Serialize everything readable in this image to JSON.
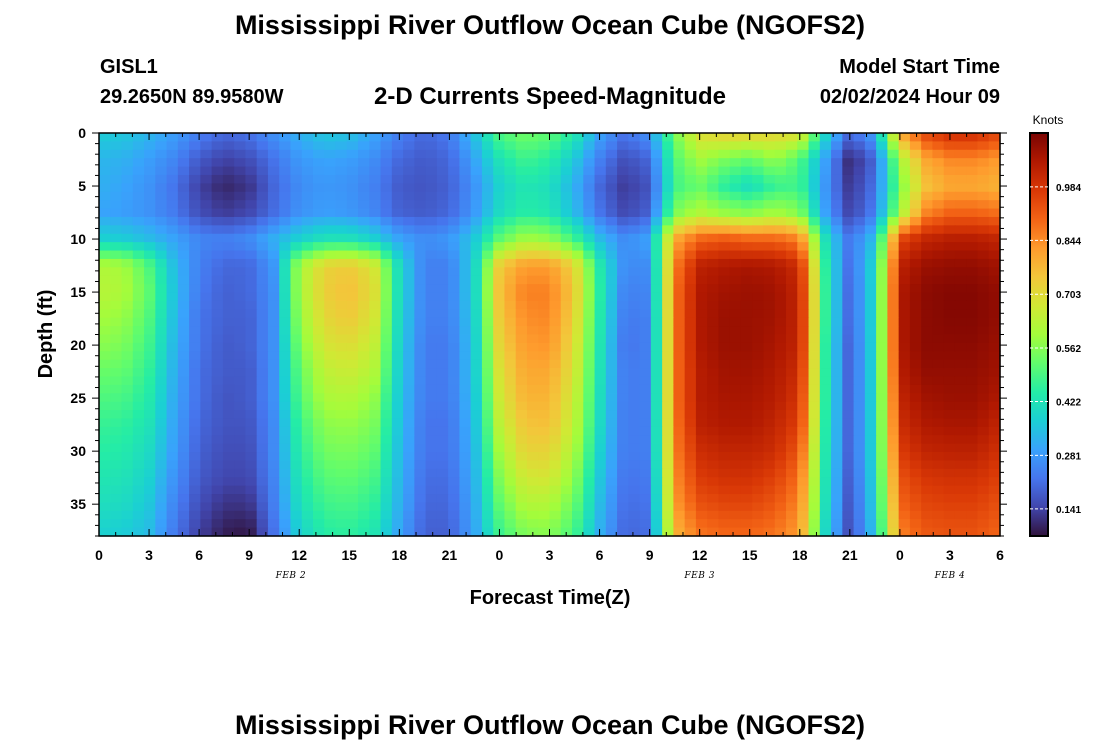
{
  "header": {
    "title": "Mississippi River Outflow Ocean Cube (NGOFS2)",
    "station": "GISL1",
    "coords": "29.2650N  89.9580W",
    "subtitle": "2-D Currents Speed-Magnitude",
    "model_start_label": "Model Start Time",
    "model_start_value": "02/02/2024 Hour 09"
  },
  "footer": {
    "title": "Mississippi River Outflow Ocean Cube (NGOFS2)"
  },
  "chart_data": {
    "type": "heatmap",
    "xlabel": "Forecast Time(Z)",
    "ylabel": "Depth (ft)",
    "x_range_hours": [
      0,
      54
    ],
    "y_range_ft": [
      0,
      38
    ],
    "y_inverted": true,
    "x_ticks": [
      {
        "hour": 0,
        "label": "0"
      },
      {
        "hour": 3,
        "label": "3"
      },
      {
        "hour": 6,
        "label": "6"
      },
      {
        "hour": 9,
        "label": "9"
      },
      {
        "hour": 12,
        "label": "12"
      },
      {
        "hour": 15,
        "label": "15"
      },
      {
        "hour": 18,
        "label": "18"
      },
      {
        "hour": 21,
        "label": "21"
      },
      {
        "hour": 24,
        "label": "0"
      },
      {
        "hour": 27,
        "label": "3"
      },
      {
        "hour": 30,
        "label": "6"
      },
      {
        "hour": 33,
        "label": "9"
      },
      {
        "hour": 36,
        "label": "12"
      },
      {
        "hour": 39,
        "label": "15"
      },
      {
        "hour": 42,
        "label": "18"
      },
      {
        "hour": 45,
        "label": "21"
      },
      {
        "hour": 48,
        "label": "0"
      },
      {
        "hour": 51,
        "label": "3"
      },
      {
        "hour": 54,
        "label": "6"
      }
    ],
    "date_labels": [
      {
        "hour": 11.5,
        "label": "FEB 2"
      },
      {
        "hour": 36,
        "label": "FEB 3"
      },
      {
        "hour": 51,
        "label": "FEB 4"
      }
    ],
    "y_ticks": [
      0,
      5,
      10,
      15,
      20,
      25,
      30,
      35
    ],
    "colorbar": {
      "unit": "Knots",
      "min": 0.07,
      "max": 1.125,
      "ticks": [
        0.141,
        0.281,
        0.422,
        0.562,
        0.703,
        0.844,
        0.984
      ],
      "tick_labels": [
        "0.141",
        "0.281",
        "0.422",
        "0.562",
        "0.703",
        "0.844",
        "0.984"
      ],
      "colormap": [
        "#30123b",
        "#4145ab",
        "#4675ed",
        "#39a2fc",
        "#1bcfd4",
        "#24eca6",
        "#61fc6c",
        "#a4fc3b",
        "#d1e834",
        "#f3c63a",
        "#fe9b2d",
        "#f36315",
        "#d93806",
        "#b11901",
        "#7a0402"
      ]
    },
    "data_columns_hour": [
      0,
      1.5,
      3,
      4.5,
      6,
      7.5,
      9,
      10.5,
      12,
      13.5,
      15,
      16.5,
      18,
      19.5,
      21,
      22.5,
      24,
      25.5,
      27,
      28.5,
      30,
      31.5,
      33,
      34.5,
      36,
      37.5,
      39,
      40.5,
      42,
      43.5,
      45,
      46.5,
      48,
      49.5,
      51,
      52.5,
      54
    ],
    "data_rows_depth_ft": [
      0,
      2.5,
      5,
      7.5,
      10,
      12.5,
      15,
      17.5,
      20,
      22.5,
      25,
      27.5,
      30,
      32.5,
      35,
      37.5
    ],
    "speed_knots": [
      [
        0.37,
        0.36,
        0.33,
        0.29,
        0.24,
        0.2,
        0.22,
        0.27,
        0.32,
        0.36,
        0.35,
        0.3,
        0.24,
        0.2,
        0.23,
        0.35,
        0.5,
        0.54,
        0.52,
        0.44,
        0.3,
        0.22,
        0.27,
        0.55,
        0.7,
        0.73,
        0.73,
        0.72,
        0.7,
        0.4,
        0.2,
        0.3,
        0.8,
        0.95,
        1.0,
        1.0,
        0.95
      ],
      [
        0.33,
        0.32,
        0.29,
        0.25,
        0.18,
        0.14,
        0.16,
        0.22,
        0.28,
        0.3,
        0.29,
        0.26,
        0.2,
        0.18,
        0.2,
        0.3,
        0.42,
        0.48,
        0.45,
        0.36,
        0.24,
        0.16,
        0.2,
        0.5,
        0.6,
        0.55,
        0.52,
        0.58,
        0.5,
        0.3,
        0.1,
        0.2,
        0.6,
        0.8,
        0.85,
        0.85,
        0.82
      ],
      [
        0.32,
        0.3,
        0.27,
        0.22,
        0.14,
        0.1,
        0.12,
        0.2,
        0.26,
        0.28,
        0.27,
        0.24,
        0.18,
        0.17,
        0.19,
        0.27,
        0.38,
        0.43,
        0.41,
        0.32,
        0.2,
        0.13,
        0.17,
        0.48,
        0.53,
        0.45,
        0.4,
        0.47,
        0.48,
        0.28,
        0.12,
        0.22,
        0.55,
        0.75,
        0.8,
        0.8,
        0.78
      ],
      [
        0.3,
        0.29,
        0.27,
        0.23,
        0.16,
        0.13,
        0.15,
        0.21,
        0.27,
        0.29,
        0.28,
        0.25,
        0.19,
        0.18,
        0.2,
        0.28,
        0.4,
        0.45,
        0.43,
        0.34,
        0.22,
        0.15,
        0.19,
        0.55,
        0.62,
        0.58,
        0.56,
        0.6,
        0.56,
        0.3,
        0.14,
        0.24,
        0.6,
        0.85,
        0.9,
        0.9,
        0.88
      ],
      [
        0.38,
        0.37,
        0.34,
        0.3,
        0.25,
        0.24,
        0.26,
        0.32,
        0.38,
        0.42,
        0.42,
        0.38,
        0.3,
        0.26,
        0.28,
        0.36,
        0.52,
        0.6,
        0.58,
        0.48,
        0.34,
        0.26,
        0.3,
        0.8,
        0.9,
        0.92,
        0.9,
        0.9,
        0.86,
        0.42,
        0.22,
        0.35,
        0.95,
        1.02,
        1.04,
        1.04,
        1.02
      ],
      [
        0.62,
        0.6,
        0.5,
        0.34,
        0.24,
        0.2,
        0.2,
        0.28,
        0.6,
        0.72,
        0.74,
        0.68,
        0.4,
        0.24,
        0.24,
        0.38,
        0.74,
        0.82,
        0.82,
        0.72,
        0.44,
        0.26,
        0.26,
        0.86,
        1.03,
        1.05,
        1.06,
        1.05,
        1.0,
        0.46,
        0.2,
        0.4,
        1.03,
        1.08,
        1.09,
        1.09,
        1.07
      ],
      [
        0.63,
        0.61,
        0.52,
        0.35,
        0.23,
        0.19,
        0.2,
        0.27,
        0.6,
        0.73,
        0.76,
        0.7,
        0.4,
        0.24,
        0.24,
        0.38,
        0.76,
        0.86,
        0.86,
        0.74,
        0.45,
        0.24,
        0.25,
        0.88,
        1.05,
        1.07,
        1.08,
        1.07,
        1.02,
        0.47,
        0.19,
        0.4,
        1.05,
        1.1,
        1.11,
        1.11,
        1.09
      ],
      [
        0.6,
        0.58,
        0.5,
        0.34,
        0.22,
        0.19,
        0.19,
        0.27,
        0.58,
        0.71,
        0.74,
        0.68,
        0.39,
        0.24,
        0.24,
        0.37,
        0.74,
        0.84,
        0.85,
        0.72,
        0.44,
        0.23,
        0.24,
        0.88,
        1.05,
        1.08,
        1.08,
        1.07,
        1.02,
        0.47,
        0.19,
        0.4,
        1.05,
        1.1,
        1.11,
        1.11,
        1.09
      ],
      [
        0.57,
        0.55,
        0.48,
        0.33,
        0.22,
        0.18,
        0.19,
        0.27,
        0.55,
        0.68,
        0.7,
        0.65,
        0.38,
        0.23,
        0.23,
        0.36,
        0.72,
        0.82,
        0.83,
        0.7,
        0.43,
        0.22,
        0.24,
        0.88,
        1.05,
        1.08,
        1.08,
        1.06,
        1.02,
        0.46,
        0.18,
        0.4,
        1.05,
        1.1,
        1.1,
        1.1,
        1.08
      ],
      [
        0.53,
        0.52,
        0.46,
        0.32,
        0.21,
        0.18,
        0.18,
        0.27,
        0.52,
        0.64,
        0.66,
        0.62,
        0.37,
        0.23,
        0.23,
        0.36,
        0.69,
        0.8,
        0.8,
        0.68,
        0.42,
        0.23,
        0.24,
        0.88,
        1.04,
        1.07,
        1.07,
        1.05,
        1.0,
        0.46,
        0.18,
        0.4,
        1.04,
        1.09,
        1.09,
        1.09,
        1.07
      ],
      [
        0.5,
        0.49,
        0.44,
        0.31,
        0.21,
        0.17,
        0.18,
        0.27,
        0.5,
        0.61,
        0.62,
        0.58,
        0.36,
        0.23,
        0.23,
        0.35,
        0.67,
        0.78,
        0.78,
        0.66,
        0.41,
        0.23,
        0.24,
        0.88,
        1.04,
        1.06,
        1.06,
        1.04,
        0.98,
        0.46,
        0.18,
        0.4,
        1.02,
        1.07,
        1.08,
        1.08,
        1.05
      ],
      [
        0.47,
        0.46,
        0.42,
        0.3,
        0.2,
        0.17,
        0.17,
        0.26,
        0.47,
        0.57,
        0.58,
        0.55,
        0.35,
        0.22,
        0.22,
        0.34,
        0.64,
        0.75,
        0.76,
        0.64,
        0.4,
        0.23,
        0.24,
        0.87,
        1.03,
        1.05,
        1.05,
        1.02,
        0.96,
        0.45,
        0.18,
        0.4,
        1.0,
        1.05,
        1.06,
        1.06,
        1.02
      ],
      [
        0.45,
        0.44,
        0.4,
        0.29,
        0.19,
        0.16,
        0.16,
        0.26,
        0.45,
        0.54,
        0.55,
        0.52,
        0.34,
        0.22,
        0.22,
        0.33,
        0.6,
        0.72,
        0.72,
        0.61,
        0.38,
        0.23,
        0.24,
        0.86,
        1.0,
        1.02,
        1.02,
        1.0,
        0.92,
        0.44,
        0.18,
        0.4,
        0.97,
        1.02,
        1.03,
        1.03,
        0.99
      ],
      [
        0.43,
        0.42,
        0.38,
        0.27,
        0.18,
        0.15,
        0.15,
        0.25,
        0.43,
        0.51,
        0.52,
        0.49,
        0.33,
        0.21,
        0.21,
        0.32,
        0.56,
        0.67,
        0.68,
        0.57,
        0.36,
        0.22,
        0.23,
        0.84,
        0.97,
        0.99,
        0.99,
        0.96,
        0.88,
        0.43,
        0.17,
        0.39,
        0.93,
        0.98,
        0.99,
        0.99,
        0.96
      ],
      [
        0.41,
        0.4,
        0.36,
        0.25,
        0.16,
        0.12,
        0.12,
        0.24,
        0.41,
        0.48,
        0.49,
        0.46,
        0.32,
        0.2,
        0.2,
        0.31,
        0.52,
        0.62,
        0.62,
        0.53,
        0.34,
        0.21,
        0.22,
        0.82,
        0.93,
        0.95,
        0.95,
        0.92,
        0.85,
        0.42,
        0.16,
        0.38,
        0.9,
        0.95,
        0.96,
        0.96,
        0.93
      ],
      [
        0.38,
        0.37,
        0.34,
        0.23,
        0.14,
        0.09,
        0.08,
        0.22,
        0.38,
        0.45,
        0.46,
        0.43,
        0.3,
        0.19,
        0.19,
        0.3,
        0.48,
        0.56,
        0.57,
        0.49,
        0.32,
        0.2,
        0.21,
        0.78,
        0.88,
        0.9,
        0.9,
        0.88,
        0.82,
        0.4,
        0.15,
        0.36,
        0.86,
        0.92,
        0.93,
        0.93,
        0.9
      ]
    ]
  }
}
